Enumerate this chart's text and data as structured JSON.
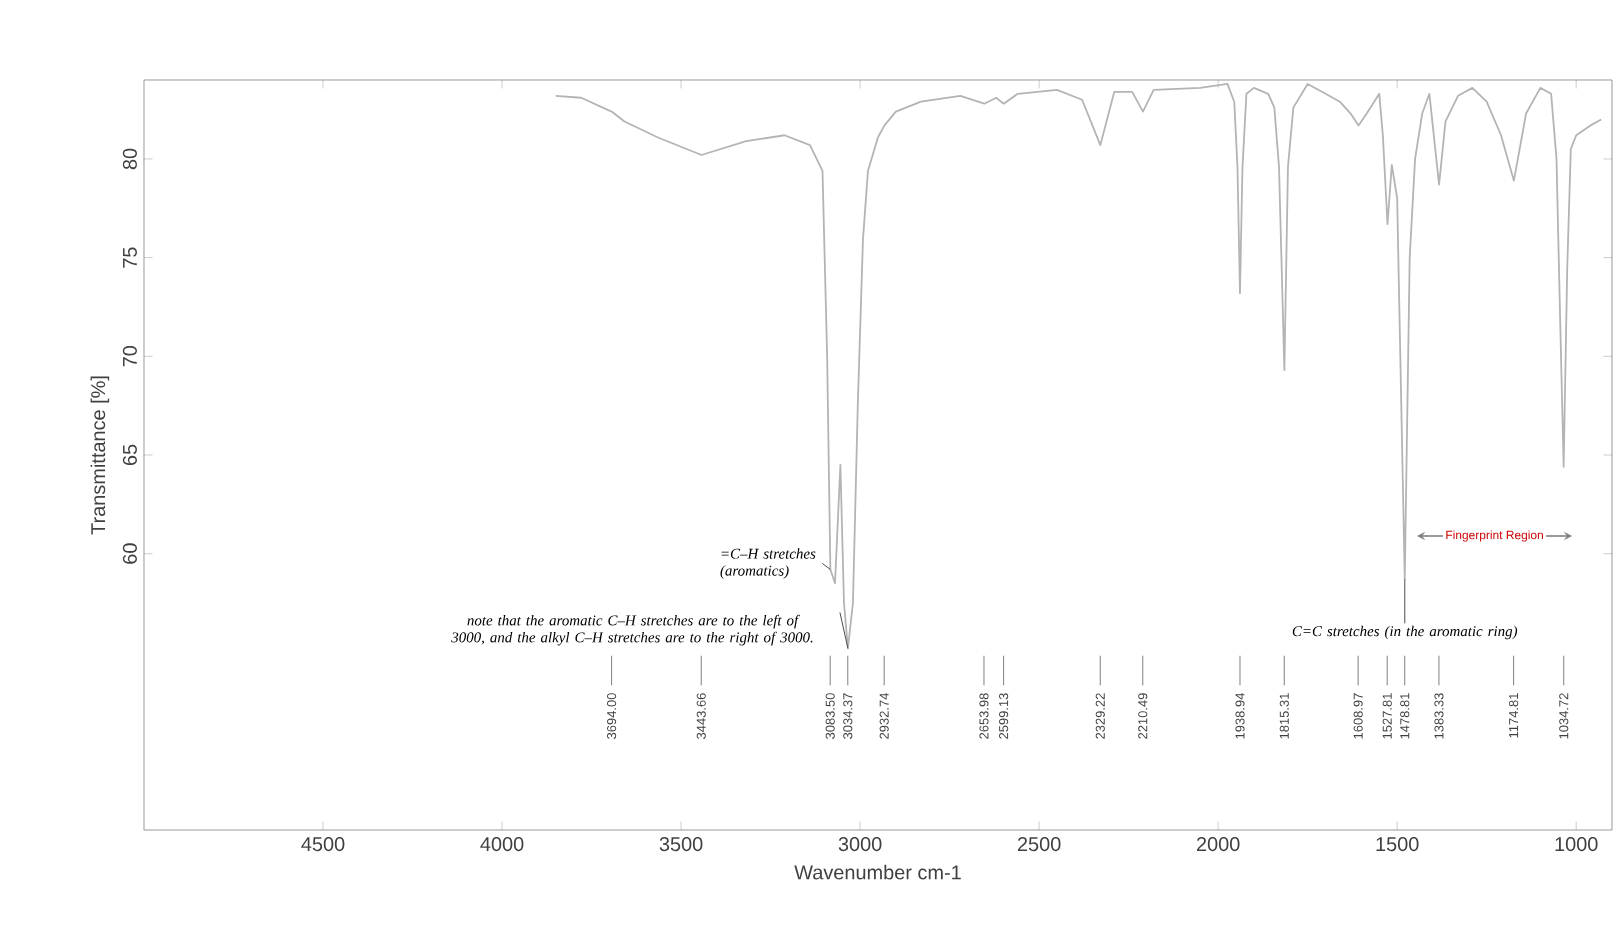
{
  "chart_data": {
    "type": "line",
    "xlabel": "Wavenumber cm-1",
    "ylabel": "Transmittance [%]",
    "xlim": [
      5000,
      900
    ],
    "ylim": [
      46,
      84
    ],
    "xticks": [
      4500,
      4000,
      3500,
      3000,
      2500,
      2000,
      1500,
      1000
    ],
    "yticks": [
      60,
      65,
      70,
      75,
      80
    ],
    "series": [
      {
        "color": "#b4b4b4",
        "x": [
          3850,
          3779,
          3694,
          3658,
          3566,
          3443,
          3318,
          3211,
          3140,
          3105,
          3092,
          3083,
          3070,
          3055,
          3045,
          3034,
          3020,
          3006,
          2992,
          2978,
          2950,
          2932,
          2900,
          2830,
          2720,
          2653,
          2620,
          2599,
          2560,
          2450,
          2380,
          2329,
          2290,
          2240,
          2210,
          2180,
          2050,
          1974,
          1955,
          1946,
          1939,
          1932,
          1921,
          1900,
          1860,
          1843,
          1830,
          1815,
          1805,
          1790,
          1750,
          1700,
          1660,
          1630,
          1608,
          1585,
          1550,
          1540,
          1527,
          1515,
          1500,
          1478.81,
          1465,
          1450,
          1430,
          1410,
          1383,
          1365,
          1330,
          1290,
          1250,
          1210,
          1174,
          1140,
          1100,
          1070,
          1055,
          1045,
          1035,
          1025,
          1015,
          1000,
          960,
          930
        ],
        "values": [
          83.2,
          83.1,
          82.4,
          81.9,
          81.1,
          80.2,
          80.9,
          81.2,
          80.7,
          79.4,
          70,
          59.2,
          58.5,
          64.5,
          57.5,
          55.2,
          57.5,
          67.8,
          75.9,
          79.4,
          81.1,
          81.7,
          82.4,
          82.9,
          83.2,
          82.8,
          83.1,
          82.8,
          83.3,
          83.5,
          83.0,
          80.7,
          83.4,
          83.4,
          82.4,
          83.5,
          83.6,
          83.8,
          82.9,
          79.6,
          73.2,
          79.6,
          83.3,
          83.6,
          83.3,
          82.6,
          79.6,
          69.3,
          79.6,
          82.6,
          83.8,
          83.3,
          82.9,
          82.3,
          81.7,
          82.3,
          83.3,
          81.2,
          76.7,
          79.7,
          78.0,
          58.7,
          75.0,
          80.0,
          82.3,
          83.3,
          78.7,
          81.9,
          83.2,
          83.6,
          82.9,
          81.2,
          78.9,
          82.3,
          83.6,
          83.3,
          80.0,
          72.0,
          64.4,
          74.5,
          80.5,
          81.2,
          81.7,
          82.0
        ]
      }
    ],
    "annotations": [
      "Fingerprint Region",
      {
        "text": "=C–H stretches (aromatics)",
        "x": 3083,
        "y": 59.2
      },
      {
        "text": "note that the aromatic C–H stretches are to the left of 3000, and the alkyl C–H stretches are to the right of 3000.",
        "x": 3034,
        "y": 55.2
      },
      {
        "text": "C=C stretches (in the aromatic ring)",
        "x": 1478.81,
        "y": 58.7
      },
      {
        "text": "3694.00",
        "x": 3694
      },
      {
        "text": "3443.66",
        "x": 3443.66
      },
      {
        "text": "3083.50",
        "x": 3083.5
      },
      {
        "text": "3034.37",
        "x": 3034.37
      },
      {
        "text": "2932.74",
        "x": 2932.74
      },
      {
        "text": "2653.98",
        "x": 2653.98
      },
      {
        "text": "2599.13",
        "x": 2599.13
      },
      {
        "text": "2329.22",
        "x": 2329.22
      },
      {
        "text": "2210.49",
        "x": 2210.49
      },
      {
        "text": "1938.94",
        "x": 1938.94
      },
      {
        "text": "1815.31",
        "x": 1815.31
      },
      {
        "text": "1608.97",
        "x": 1608.97
      },
      {
        "text": "1527.81",
        "x": 1527.81
      },
      {
        "text": "1478.81",
        "x": 1478.81
      },
      {
        "text": "1383.33",
        "x": 1383.33
      },
      {
        "text": "1174.81",
        "x": 1174.81
      },
      {
        "text": "1034.72",
        "x": 1034.72
      }
    ]
  }
}
